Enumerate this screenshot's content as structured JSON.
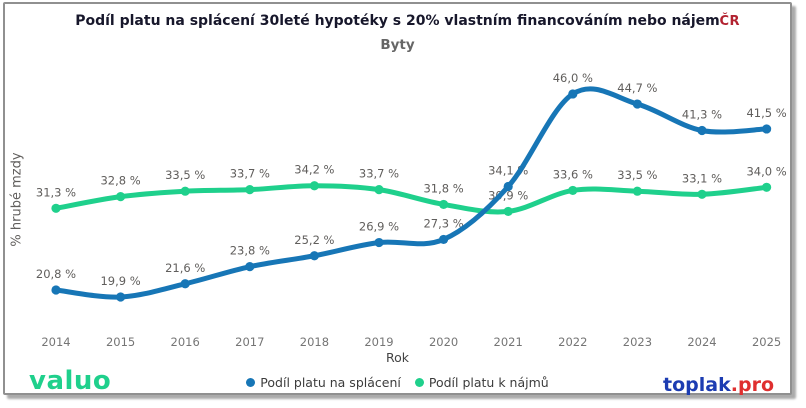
{
  "header": {
    "title": "Podíl platu na splácení 30leté hypotéky s 20% vlastním financováním nebo nájem",
    "region": "ČR",
    "subtitle": "Byty"
  },
  "chart_data": {
    "type": "line",
    "x": [
      2014,
      2015,
      2016,
      2017,
      2018,
      2019,
      2020,
      2021,
      2022,
      2023,
      2024,
      2025
    ],
    "series": [
      {
        "name": "Podíl platu na splácení",
        "color": "#1776b6",
        "values": [
          20.8,
          19.9,
          21.6,
          23.8,
          25.2,
          26.9,
          27.3,
          34.1,
          46.0,
          44.7,
          41.3,
          41.5
        ]
      },
      {
        "name": "Podíl platu k nájmů",
        "color": "#1fd08c",
        "values": [
          31.3,
          32.8,
          33.5,
          33.7,
          34.2,
          33.7,
          31.8,
          30.9,
          33.6,
          33.5,
          33.1,
          34.0
        ]
      }
    ],
    "xlabel": "Rok",
    "ylabel": "% hrubé mzdy",
    "ylim": [
      15,
      50
    ],
    "grid": false,
    "legend_position": "bottom",
    "data_label_style": "czech decimal comma, suffix ' %'",
    "label_color": "#605e5c",
    "tick_color": "#757575"
  },
  "footer": {
    "brand_left": "valuo",
    "brand_left_color": "#1fd08c",
    "brand_right_name": "toplak",
    "brand_right_tld": ".pro",
    "brand_right_name_color": "#1c3cb2",
    "brand_right_tld_color": "#df2f2f"
  }
}
